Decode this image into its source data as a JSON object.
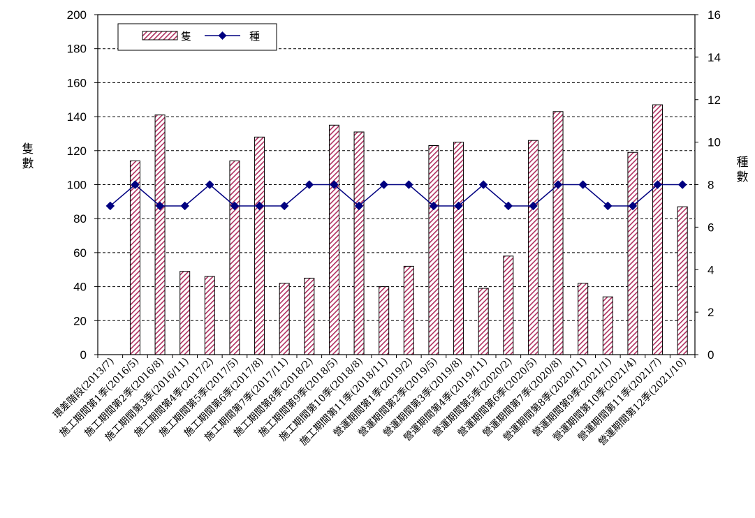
{
  "chart_data": {
    "type": "bar",
    "categories": [
      "環差階段(2013/7)",
      "施工期間第1季(2016/5)",
      "施工期間第2季(2016/8)",
      "施工期間第3季(2016/11)",
      "施工期間第4季(2017/2)",
      "施工期間第5季(2017/5)",
      "施工期間第6季(2017/8)",
      "施工期間第7季(2017/11)",
      "施工期間第8季(2018/2)",
      "施工期間第9季(2018/5)",
      "施工期間第10季(2018/8)",
      "施工期間第11季(2018/11)",
      "營運期間第1季(2019/2)",
      "營運期間第2季(2019/5)",
      "營運期間第3季(2019/8)",
      "營運期間第4季(2019/11)",
      "營運期間第5季(2020/2)",
      "營運期間第6季(2020/5)",
      "營運期間第7季(2020/8)",
      "營運期間第8季(2020/11)",
      "營運期間第9季(2021/1)",
      "營運期間第10季(2021/4)",
      "營運期間第11季(2021/7)",
      "營運期間第12季(2021/10)"
    ],
    "series": [
      {
        "name": "隻",
        "type": "bar",
        "axis": "left",
        "color": "#b03060",
        "values": [
          null,
          114,
          141,
          49,
          46,
          114,
          128,
          42,
          45,
          135,
          131,
          40,
          52,
          123,
          125,
          39,
          58,
          126,
          143,
          42,
          34,
          119,
          147,
          87
        ]
      },
      {
        "name": "種",
        "type": "line",
        "axis": "right",
        "color": "#000080",
        "values": [
          7,
          8,
          7,
          7,
          8,
          7,
          7,
          7,
          8,
          8,
          7,
          8,
          8,
          7,
          7,
          8,
          7,
          7,
          8,
          8,
          7,
          7,
          8,
          8
        ]
      }
    ],
    "ylabel": "隻數",
    "y2label": "種數",
    "ylim": [
      0,
      200
    ],
    "y2lim": [
      0,
      16
    ],
    "yticks": [
      "0",
      "20",
      "40",
      "60",
      "80",
      "100",
      "120",
      "140",
      "160",
      "180",
      "200"
    ],
    "y2ticks": [
      "0",
      "2",
      "4",
      "6",
      "8",
      "10",
      "12",
      "14",
      "16"
    ],
    "grid": "dashed horizontal",
    "legend": "top-left"
  }
}
